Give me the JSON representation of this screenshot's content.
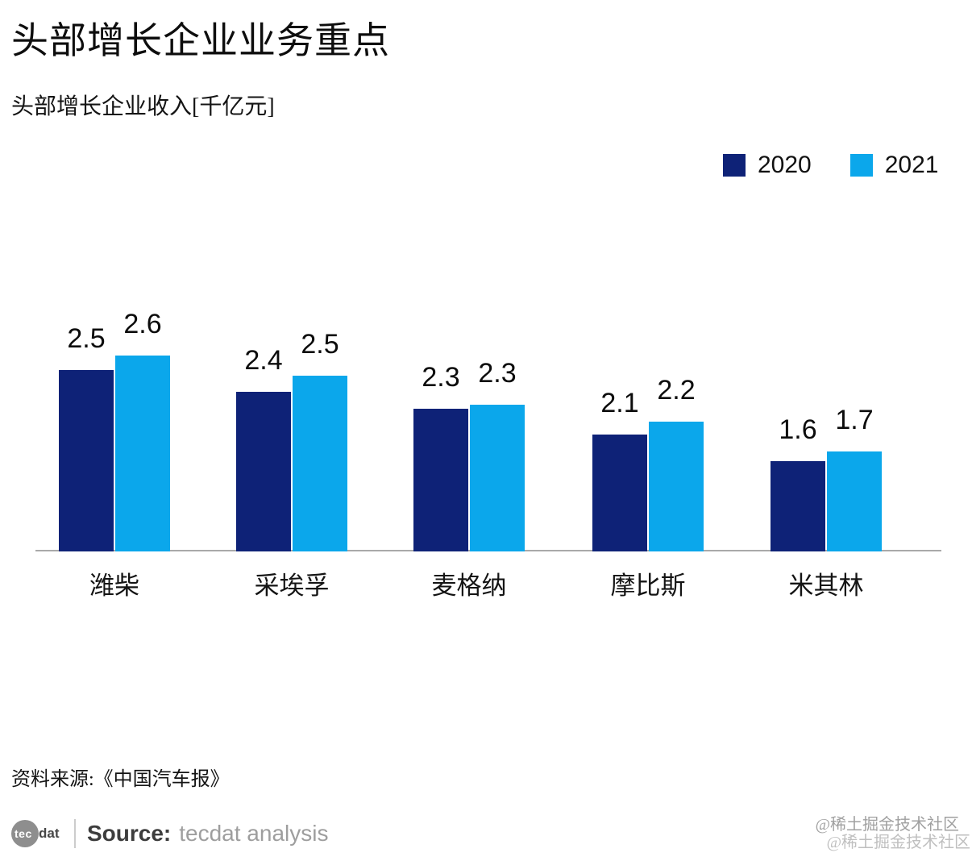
{
  "header": {
    "title": "头部增长企业业务重点",
    "subtitle": "头部增长企业收入[千亿元]"
  },
  "legend": {
    "items": [
      {
        "label": "2020",
        "color": "#0e2277"
      },
      {
        "label": "2021",
        "color": "#0ba7eb"
      }
    ]
  },
  "chart_data": {
    "type": "bar",
    "title": "头部增长企业业务重点",
    "subtitle": "头部增长企业收入[千亿元]",
    "unit": "千亿元",
    "categories": [
      "潍柴",
      "采埃孚",
      "麦格纳",
      "摩比斯",
      "米其林"
    ],
    "series": [
      {
        "name": "2020",
        "color": "#0e2277",
        "values": [
          2.5,
          2.4,
          2.3,
          2.1,
          1.6
        ]
      },
      {
        "name": "2021",
        "color": "#0ba7eb",
        "values": [
          2.6,
          2.5,
          2.3,
          2.2,
          1.7
        ]
      }
    ],
    "value_labels": true,
    "ylim": [
      0,
      2.8
    ],
    "y_axis_shown": false,
    "gridlines": false,
    "legend_position": "top-right",
    "axis_line_color": "#a9a9a9"
  },
  "source_note": {
    "text": "资料来源:《中国汽车报》"
  },
  "footer": {
    "logo": {
      "circle_text": "tec",
      "suffix_text": "dat"
    },
    "source_label": "Source:",
    "source_value": "tecdat analysis"
  },
  "watermark": {
    "line1": "@稀土掘金技术社区",
    "line2": "@稀土掘金技术社区"
  }
}
